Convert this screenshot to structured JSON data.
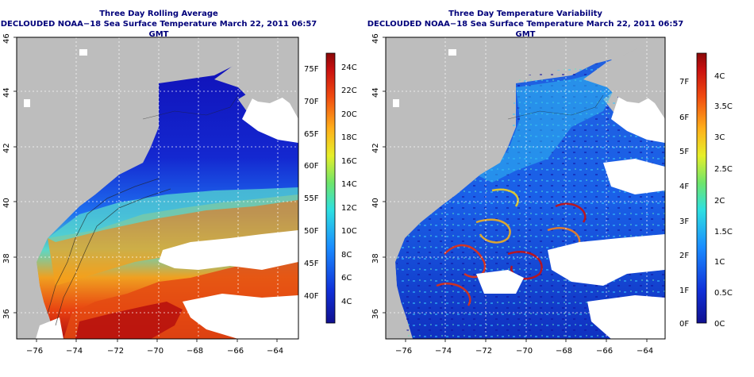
{
  "left_panel": {
    "title": "Three Day Rolling Average",
    "subtitle": "DECLOUDED NOAA−18 Sea Surface Temperature March 22, 2011 06:57 GMT",
    "x_ticks": [
      "−76",
      "−74",
      "−72",
      "−70",
      "−68",
      "−66",
      "−64"
    ],
    "y_ticks": [
      "36",
      "38",
      "40",
      "42",
      "44",
      "46"
    ],
    "colorbar_f": [
      "75F",
      "70F",
      "65F",
      "60F",
      "55F",
      "50F",
      "45F",
      "40F"
    ],
    "colorbar_c": [
      "24C",
      "22C",
      "20C",
      "18C",
      "16C",
      "14C",
      "12C",
      "10C",
      "8C",
      "6C",
      "4C"
    ]
  },
  "right_panel": {
    "title": "Three Day Temperature Variability",
    "subtitle": "DECLOUDED NOAA−18 Sea Surface Temperature March 22, 2011 06:57 GMT",
    "x_ticks": [
      "−76",
      "−74",
      "−72",
      "−70",
      "−68",
      "−66",
      "−64"
    ],
    "y_ticks": [
      "36",
      "38",
      "40",
      "42",
      "44",
      "46"
    ],
    "colorbar_f": [
      "7F",
      "6F",
      "5F",
      "4F",
      "3F",
      "2F",
      "1F",
      "0F"
    ],
    "colorbar_c": [
      "4C",
      "3.5C",
      "3C",
      "2.5C",
      "2C",
      "1.5C",
      "1C",
      "0.5C",
      "0C"
    ]
  },
  "colors": {
    "land": "#bdbdbd",
    "cloud": "#ffffff",
    "title": "#00007a"
  }
}
